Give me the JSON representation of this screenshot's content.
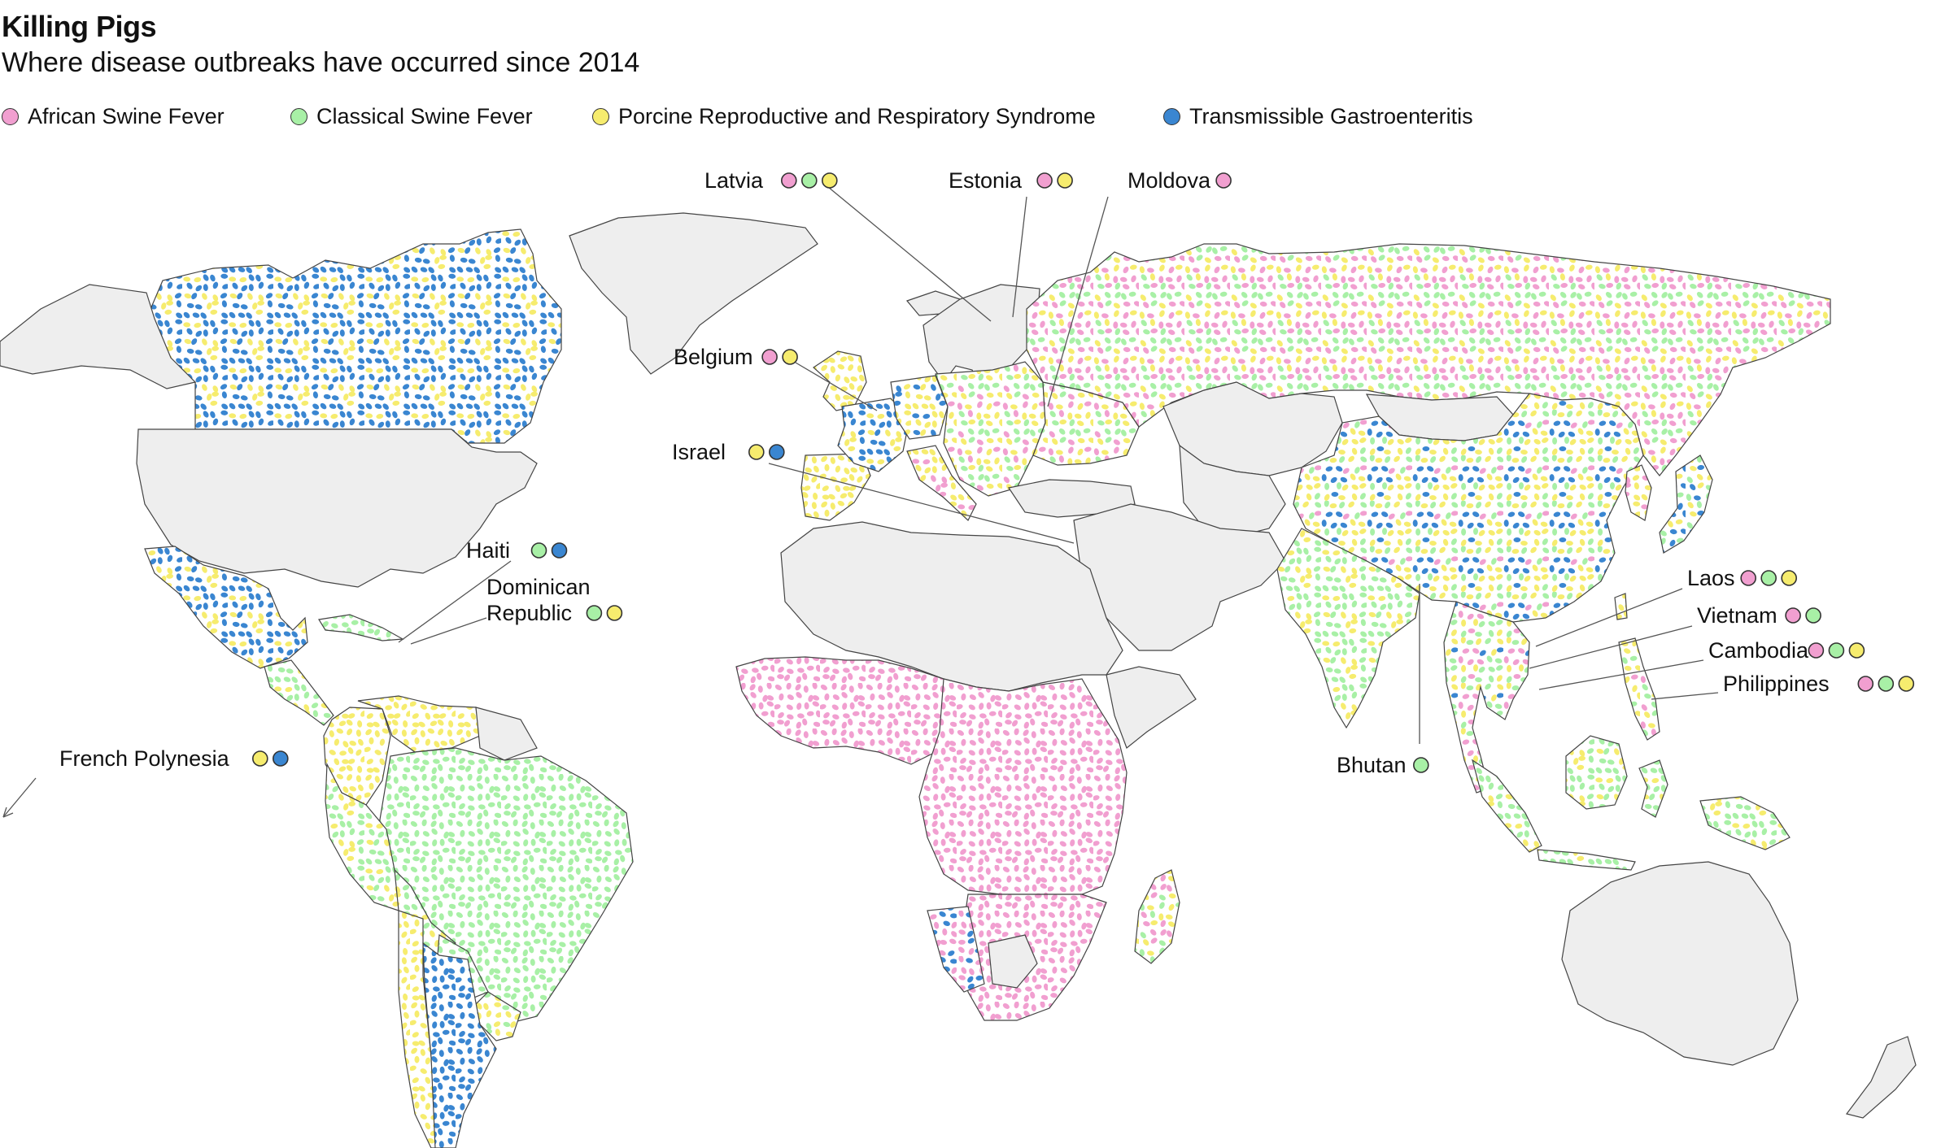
{
  "title": "Killing Pigs",
  "subtitle": "Where disease outbreaks have occurred since 2014",
  "colors": {
    "asf": "#f19fd0",
    "csf": "#a8f0a6",
    "prrs": "#f6ec6e",
    "tge": "#3a86d1",
    "land": "#eeeeee",
    "border": "#444444"
  },
  "legend": [
    {
      "key": "asf",
      "label": "African Swine Fever"
    },
    {
      "key": "csf",
      "label": "Classical Swine Fever"
    },
    {
      "key": "prrs",
      "label": "Porcine Reproductive and Respiratory Syndrome"
    },
    {
      "key": "tge",
      "label": "Transmissible Gastroenteritis"
    }
  ],
  "callouts": [
    {
      "name": "Latvia",
      "diseases": [
        "asf",
        "csf",
        "prrs"
      ]
    },
    {
      "name": "Estonia",
      "diseases": [
        "asf",
        "prrs"
      ]
    },
    {
      "name": "Moldova",
      "diseases": [
        "asf"
      ]
    },
    {
      "name": "Belgium",
      "diseases": [
        "asf",
        "prrs"
      ]
    },
    {
      "name": "Israel",
      "diseases": [
        "prrs",
        "tge"
      ]
    },
    {
      "name": "Haiti",
      "diseases": [
        "csf",
        "tge"
      ]
    },
    {
      "name": "Dominican Republic",
      "line1": "Dominican",
      "line2": "Republic",
      "diseases": [
        "csf",
        "prrs"
      ]
    },
    {
      "name": "French Polynesia",
      "diseases": [
        "prrs",
        "tge"
      ]
    },
    {
      "name": "Bhutan",
      "diseases": [
        "csf"
      ]
    },
    {
      "name": "Laos",
      "diseases": [
        "asf",
        "csf",
        "prrs"
      ]
    },
    {
      "name": "Vietnam",
      "diseases": [
        "asf",
        "csf"
      ]
    },
    {
      "name": "Cambodia",
      "diseases": [
        "asf",
        "csf",
        "prrs"
      ]
    },
    {
      "name": "Philippines",
      "diseases": [
        "asf",
        "csf",
        "prrs"
      ]
    }
  ],
  "regions": [
    {
      "name": "Canada",
      "diseases": [
        "prrs",
        "tge"
      ]
    },
    {
      "name": "Alaska",
      "diseases": []
    },
    {
      "name": "Greenland",
      "diseases": []
    },
    {
      "name": "United States",
      "diseases": []
    },
    {
      "name": "Mexico",
      "diseases": [
        "prrs",
        "tge"
      ]
    },
    {
      "name": "Central America",
      "diseases": [
        "prrs",
        "csf"
      ]
    },
    {
      "name": "Cuba",
      "diseases": [
        "csf"
      ]
    },
    {
      "name": "Colombia",
      "diseases": [
        "prrs"
      ]
    },
    {
      "name": "Venezuela",
      "diseases": [
        "prrs"
      ]
    },
    {
      "name": "Guianas",
      "diseases": []
    },
    {
      "name": "Brazil",
      "diseases": [
        "csf"
      ]
    },
    {
      "name": "Peru",
      "diseases": [
        "prrs",
        "csf"
      ]
    },
    {
      "name": "Bolivia",
      "diseases": [
        "prrs",
        "csf"
      ]
    },
    {
      "name": "Paraguay",
      "diseases": [
        "csf"
      ]
    },
    {
      "name": "Uruguay",
      "diseases": [
        "csf",
        "prrs"
      ]
    },
    {
      "name": "Chile",
      "diseases": [
        "prrs"
      ]
    },
    {
      "name": "Argentina",
      "diseases": [
        "tge"
      ]
    },
    {
      "name": "Iceland",
      "diseases": []
    },
    {
      "name": "United Kingdom",
      "diseases": [
        "prrs"
      ]
    },
    {
      "name": "Scandinavia",
      "diseases": []
    },
    {
      "name": "Iberia",
      "diseases": [
        "prrs"
      ]
    },
    {
      "name": "France",
      "diseases": [
        "prrs",
        "tge"
      ]
    },
    {
      "name": "Germany",
      "diseases": [
        "tge",
        "prrs"
      ]
    },
    {
      "name": "Italy",
      "diseases": [
        "asf",
        "prrs"
      ]
    },
    {
      "name": "Eastern Europe",
      "diseases": [
        "asf",
        "csf",
        "prrs"
      ]
    },
    {
      "name": "Ukraine",
      "diseases": [
        "asf",
        "csf",
        "prrs"
      ]
    },
    {
      "name": "Russia",
      "diseases": [
        "prrs",
        "csf",
        "asf"
      ]
    },
    {
      "name": "Kazakhstan",
      "diseases": []
    },
    {
      "name": "Mongolia",
      "diseases": []
    },
    {
      "name": "Central Asia",
      "diseases": []
    },
    {
      "name": "Turkey",
      "diseases": []
    },
    {
      "name": "Middle East",
      "diseases": []
    },
    {
      "name": "China",
      "diseases": [
        "tge",
        "prrs",
        "csf",
        "asf"
      ]
    },
    {
      "name": "India",
      "diseases": [
        "prrs",
        "csf"
      ]
    },
    {
      "name": "Korea",
      "diseases": [
        "asf",
        "prrs"
      ]
    },
    {
      "name": "Japan",
      "diseases": [
        "csf",
        "prrs",
        "tge"
      ]
    },
    {
      "name": "Southeast Asia",
      "diseases": [
        "asf",
        "csf",
        "prrs",
        "tge"
      ]
    },
    {
      "name": "Philippines",
      "diseases": [
        "asf",
        "csf",
        "prrs"
      ]
    },
    {
      "name": "Borneo",
      "diseases": [
        "prrs",
        "csf"
      ]
    },
    {
      "name": "Sumatra",
      "diseases": [
        "prrs",
        "csf"
      ]
    },
    {
      "name": "Java",
      "diseases": [
        "prrs",
        "csf"
      ]
    },
    {
      "name": "Sulawesi",
      "diseases": [
        "prrs",
        "csf"
      ]
    },
    {
      "name": "Papua New Guinea",
      "diseases": [
        "prrs",
        "csf"
      ]
    },
    {
      "name": "Taiwan",
      "diseases": [
        "prrs"
      ]
    },
    {
      "name": "Australia",
      "diseases": []
    },
    {
      "name": "New Zealand",
      "diseases": []
    },
    {
      "name": "North Africa",
      "diseases": []
    },
    {
      "name": "West Africa",
      "diseases": [
        "asf"
      ]
    },
    {
      "name": "Central and East Africa",
      "diseases": [
        "asf"
      ]
    },
    {
      "name": "Horn of Africa",
      "diseases": []
    },
    {
      "name": "Southern Africa",
      "diseases": [
        "asf"
      ]
    },
    {
      "name": "Namibia",
      "diseases": [
        "tge",
        "asf"
      ]
    },
    {
      "name": "Botswana",
      "diseases": []
    },
    {
      "name": "Madagascar",
      "diseases": [
        "csf",
        "asf",
        "prrs"
      ]
    }
  ]
}
